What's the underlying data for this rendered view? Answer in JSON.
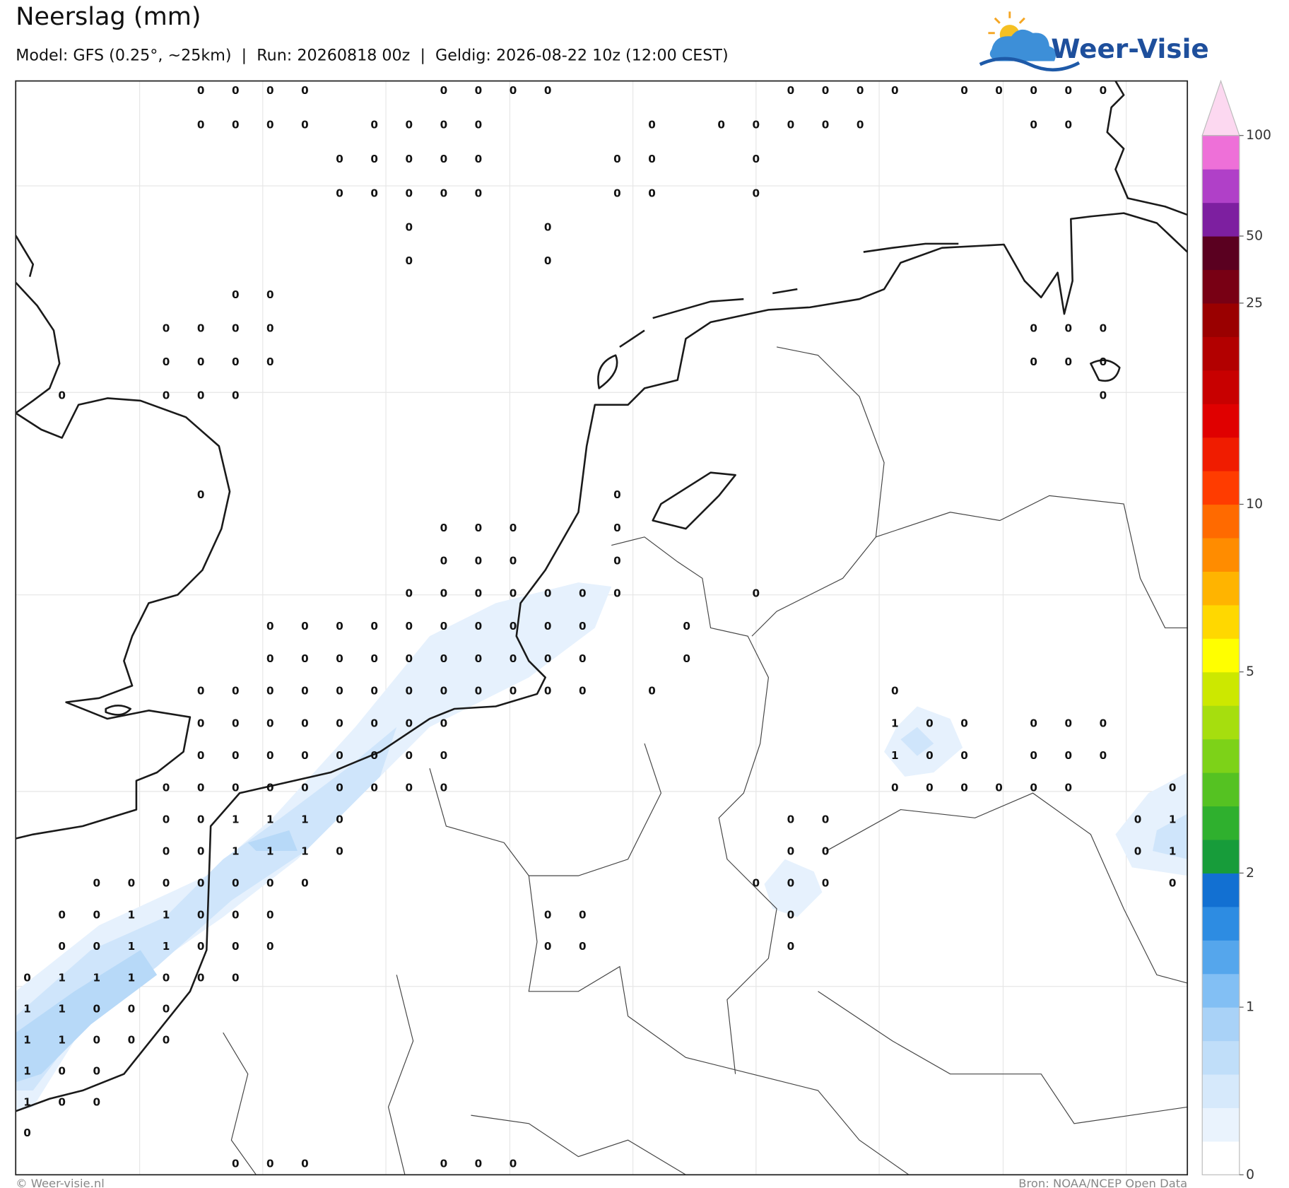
{
  "header": {
    "title": "Neerslag (mm)",
    "subtitle": "Model: GFS (0.25°, ~25km)  |  Run: 20260818 00z  |  Geldig: 2026-08-22 10z (12:00 CEST)",
    "logo": "Weer-Visie"
  },
  "map": {
    "grid": [
      [
        null,
        null,
        null,
        null,
        null,
        0,
        0,
        0,
        0,
        null,
        null,
        null,
        0,
        0,
        0,
        0,
        null,
        null,
        null,
        null,
        null,
        null,
        0,
        0,
        0,
        0,
        null,
        0,
        0,
        0,
        0,
        0,
        null,
        null
      ],
      [
        null,
        null,
        null,
        null,
        null,
        0,
        0,
        0,
        0,
        null,
        0,
        0,
        0,
        0,
        null,
        null,
        null,
        null,
        0,
        null,
        0,
        0,
        0,
        0,
        0,
        null,
        null,
        null,
        null,
        0,
        0,
        null,
        null,
        null
      ],
      [
        null,
        null,
        null,
        null,
        null,
        null,
        null,
        null,
        null,
        0,
        0,
        0,
        0,
        0,
        null,
        null,
        null,
        0,
        0,
        null,
        null,
        0,
        null,
        null,
        null,
        null,
        null,
        null,
        null,
        null,
        null,
        null,
        null,
        null
      ],
      [
        null,
        null,
        null,
        null,
        null,
        null,
        null,
        null,
        null,
        0,
        0,
        0,
        0,
        0,
        null,
        null,
        null,
        0,
        0,
        null,
        null,
        0,
        null,
        null,
        null,
        null,
        null,
        null,
        null,
        null,
        null,
        null,
        null,
        null
      ],
      [
        null,
        null,
        null,
        null,
        null,
        null,
        null,
        null,
        null,
        null,
        null,
        0,
        null,
        null,
        null,
        0,
        null,
        null,
        null,
        null,
        null,
        null,
        null,
        null,
        null,
        null,
        null,
        null,
        null,
        null,
        null,
        null,
        null,
        null
      ],
      [
        null,
        null,
        null,
        null,
        null,
        null,
        null,
        null,
        null,
        null,
        null,
        0,
        null,
        null,
        null,
        0,
        null,
        null,
        null,
        null,
        null,
        null,
        null,
        null,
        null,
        null,
        null,
        null,
        null,
        null,
        null,
        null,
        null,
        null
      ],
      [
        null,
        null,
        null,
        null,
        null,
        null,
        0,
        0,
        null,
        null,
        null,
        null,
        null,
        null,
        null,
        null,
        null,
        null,
        null,
        null,
        null,
        null,
        null,
        null,
        null,
        null,
        null,
        null,
        null,
        null,
        null,
        null,
        null,
        null
      ],
      [
        null,
        null,
        null,
        null,
        0,
        0,
        0,
        0,
        null,
        null,
        null,
        null,
        null,
        null,
        null,
        null,
        null,
        null,
        null,
        null,
        null,
        null,
        null,
        null,
        null,
        null,
        null,
        null,
        null,
        0,
        0,
        0,
        null,
        null
      ],
      [
        null,
        null,
        null,
        null,
        0,
        0,
        0,
        0,
        null,
        null,
        null,
        null,
        null,
        null,
        null,
        null,
        null,
        null,
        null,
        null,
        null,
        null,
        null,
        null,
        null,
        null,
        null,
        null,
        null,
        0,
        0,
        0,
        null,
        null
      ],
      [
        null,
        0,
        null,
        null,
        0,
        0,
        0,
        null,
        null,
        null,
        null,
        null,
        null,
        null,
        null,
        null,
        null,
        null,
        null,
        null,
        null,
        null,
        null,
        null,
        null,
        null,
        null,
        null,
        null,
        null,
        null,
        0,
        null,
        null
      ],
      [
        null,
        null,
        null,
        null,
        null,
        null,
        null,
        null,
        null,
        null,
        null,
        null,
        null,
        null,
        null,
        null,
        null,
        null,
        null,
        null,
        null,
        null,
        null,
        null,
        null,
        null,
        null,
        null,
        null,
        null,
        null,
        null,
        null,
        null
      ],
      [
        null,
        null,
        null,
        null,
        null,
        null,
        null,
        null,
        null,
        null,
        null,
        null,
        null,
        null,
        null,
        null,
        null,
        null,
        null,
        null,
        null,
        null,
        null,
        null,
        null,
        null,
        null,
        null,
        null,
        null,
        null,
        null,
        null,
        null
      ],
      [
        null,
        null,
        null,
        null,
        null,
        0,
        null,
        null,
        null,
        null,
        null,
        null,
        null,
        null,
        null,
        null,
        null,
        0,
        null,
        null,
        null,
        null,
        null,
        null,
        null,
        null,
        null,
        null,
        null,
        null,
        null,
        null,
        null,
        null
      ],
      [
        null,
        null,
        null,
        null,
        null,
        null,
        null,
        null,
        null,
        null,
        null,
        null,
        0,
        0,
        0,
        null,
        null,
        0,
        null,
        null,
        null,
        null,
        null,
        null,
        null,
        null,
        null,
        null,
        null,
        null,
        null,
        null,
        null,
        null
      ],
      [
        null,
        null,
        null,
        null,
        null,
        null,
        null,
        null,
        null,
        null,
        null,
        null,
        0,
        0,
        0,
        null,
        null,
        0,
        null,
        null,
        null,
        null,
        null,
        null,
        null,
        null,
        null,
        null,
        null,
        null,
        null,
        null,
        null,
        null
      ],
      [
        null,
        null,
        null,
        null,
        null,
        null,
        null,
        null,
        null,
        null,
        null,
        0,
        0,
        0,
        0,
        0,
        0,
        0,
        null,
        null,
        null,
        0,
        null,
        null,
        null,
        null,
        null,
        null,
        null,
        null,
        null,
        null,
        null,
        null
      ],
      [
        null,
        null,
        null,
        null,
        null,
        null,
        null,
        0,
        0,
        0,
        0,
        0,
        0,
        0,
        0,
        0,
        0,
        null,
        null,
        0,
        null,
        null,
        null,
        null,
        null,
        null,
        null,
        null,
        null,
        null,
        null,
        null,
        null,
        null
      ],
      [
        null,
        null,
        null,
        null,
        null,
        null,
        null,
        0,
        0,
        0,
        0,
        0,
        0,
        0,
        0,
        0,
        0,
        null,
        null,
        0,
        null,
        null,
        null,
        null,
        null,
        null,
        null,
        null,
        null,
        null,
        null,
        null,
        null,
        null
      ],
      [
        null,
        null,
        null,
        null,
        null,
        0,
        0,
        0,
        0,
        0,
        0,
        0,
        0,
        0,
        0,
        0,
        0,
        null,
        0,
        null,
        null,
        null,
        null,
        null,
        null,
        0,
        null,
        null,
        null,
        null,
        null,
        null,
        null,
        null
      ],
      [
        null,
        null,
        null,
        null,
        null,
        0,
        0,
        0,
        0,
        0,
        0,
        0,
        0,
        null,
        null,
        null,
        null,
        null,
        null,
        null,
        null,
        null,
        null,
        null,
        null,
        1,
        0,
        0,
        null,
        0,
        0,
        0,
        null,
        null
      ],
      [
        null,
        null,
        null,
        null,
        null,
        0,
        0,
        0,
        0,
        0,
        0,
        0,
        0,
        null,
        null,
        null,
        null,
        null,
        null,
        null,
        null,
        null,
        null,
        null,
        null,
        1,
        0,
        0,
        null,
        0,
        0,
        0,
        null,
        null
      ],
      [
        null,
        null,
        null,
        null,
        0,
        0,
        0,
        0,
        0,
        0,
        0,
        0,
        0,
        null,
        null,
        null,
        null,
        null,
        null,
        null,
        null,
        null,
        null,
        null,
        null,
        0,
        0,
        0,
        0,
        0,
        0,
        null,
        null,
        0
      ],
      [
        null,
        null,
        null,
        null,
        0,
        0,
        1,
        1,
        1,
        0,
        null,
        null,
        null,
        null,
        null,
        null,
        null,
        null,
        null,
        null,
        null,
        null,
        0,
        0,
        null,
        null,
        null,
        null,
        null,
        null,
        null,
        null,
        0,
        1
      ],
      [
        null,
        null,
        null,
        null,
        0,
        0,
        1,
        1,
        1,
        0,
        null,
        null,
        null,
        null,
        null,
        null,
        null,
        null,
        null,
        null,
        null,
        null,
        0,
        0,
        null,
        null,
        null,
        null,
        null,
        null,
        null,
        null,
        0,
        1
      ],
      [
        null,
        null,
        0,
        0,
        0,
        0,
        0,
        0,
        0,
        null,
        null,
        null,
        null,
        null,
        null,
        null,
        null,
        null,
        null,
        null,
        null,
        0,
        0,
        0,
        null,
        null,
        null,
        null,
        null,
        null,
        null,
        null,
        null,
        0
      ],
      [
        null,
        0,
        0,
        1,
        1,
        0,
        0,
        0,
        null,
        null,
        null,
        null,
        null,
        null,
        null,
        0,
        0,
        null,
        null,
        null,
        null,
        null,
        0,
        null,
        null,
        null,
        null,
        null,
        null,
        null,
        null,
        null,
        null,
        null
      ],
      [
        null,
        0,
        0,
        1,
        1,
        0,
        0,
        0,
        null,
        null,
        null,
        null,
        null,
        null,
        null,
        0,
        0,
        null,
        null,
        null,
        null,
        null,
        0,
        null,
        null,
        null,
        null,
        null,
        null,
        null,
        null,
        null,
        null,
        null
      ],
      [
        0,
        1,
        1,
        1,
        0,
        0,
        0,
        null,
        null,
        null,
        null,
        null,
        null,
        null,
        null,
        null,
        null,
        null,
        null,
        null,
        null,
        null,
        null,
        null,
        null,
        null,
        null,
        null,
        null,
        null,
        null,
        null,
        null,
        null
      ],
      [
        1,
        1,
        0,
        0,
        0,
        null,
        null,
        null,
        null,
        null,
        null,
        null,
        null,
        null,
        null,
        null,
        null,
        null,
        null,
        null,
        null,
        null,
        null,
        null,
        null,
        null,
        null,
        null,
        null,
        null,
        null,
        null,
        null,
        null
      ],
      [
        1,
        1,
        0,
        0,
        0,
        null,
        null,
        null,
        null,
        null,
        null,
        null,
        null,
        null,
        null,
        null,
        null,
        null,
        null,
        null,
        null,
        null,
        null,
        null,
        null,
        null,
        null,
        null,
        null,
        null,
        null,
        null,
        null,
        null
      ],
      [
        1,
        0,
        0,
        null,
        null,
        null,
        null,
        null,
        null,
        null,
        null,
        null,
        null,
        null,
        null,
        null,
        null,
        null,
        null,
        null,
        null,
        null,
        null,
        null,
        null,
        null,
        null,
        null,
        null,
        null,
        null,
        null,
        null,
        null
      ],
      [
        1,
        0,
        0,
        null,
        null,
        null,
        null,
        null,
        null,
        null,
        null,
        null,
        null,
        null,
        null,
        null,
        null,
        null,
        null,
        null,
        null,
        null,
        null,
        null,
        null,
        null,
        null,
        null,
        null,
        null,
        null,
        null,
        null,
        null
      ],
      [
        0,
        null,
        null,
        null,
        null,
        null,
        null,
        null,
        null,
        null,
        null,
        null,
        null,
        null,
        null,
        null,
        null,
        null,
        null,
        null,
        null,
        null,
        null,
        null,
        null,
        null,
        null,
        null,
        null,
        null,
        null,
        null,
        null,
        null
      ],
      [
        null,
        null,
        null,
        null,
        null,
        null,
        0,
        0,
        0,
        null,
        null,
        null,
        0,
        0,
        0,
        null,
        null,
        null,
        null,
        null,
        null,
        null,
        null,
        null,
        null,
        null,
        null,
        null,
        null,
        null,
        null,
        null,
        null,
        null
      ]
    ]
  },
  "colorbar": {
    "ticks": [
      0,
      1,
      2,
      5,
      10,
      25,
      50,
      100
    ],
    "levels": [
      0,
      0.2,
      0.4,
      0.6,
      0.8,
      1,
      1.25,
      1.5,
      1.75,
      2,
      2.5,
      3,
      3.5,
      4,
      4.5,
      5,
      6,
      7,
      8,
      9,
      10,
      12.5,
      15,
      17.5,
      20,
      22.5,
      25,
      37.5,
      50,
      66,
      83,
      100
    ],
    "colors": [
      "#ffffff",
      "#eaf3fd",
      "#d6e9fb",
      "#c0def9",
      "#a9d2f7",
      "#82bff4",
      "#55a6ec",
      "#2d8ce2",
      "#1270d2",
      "#179c3a",
      "#2fb02e",
      "#55c222",
      "#7dd218",
      "#a6de0e",
      "#cce800",
      "#ffff00",
      "#ffd800",
      "#ffb400",
      "#ff8c00",
      "#ff6a00",
      "#ff3c00",
      "#f01c00",
      "#e00000",
      "#c80000",
      "#b20000",
      "#9a0000",
      "#780014",
      "#5a0020",
      "#7d1fa0",
      "#b040c8",
      "#ee70d8"
    ],
    "extend_color": "#fcd8f0"
  },
  "footer": {
    "left": "© Weer-visie.nl",
    "right": "Bron: NOAA/NCEP Open Data"
  }
}
